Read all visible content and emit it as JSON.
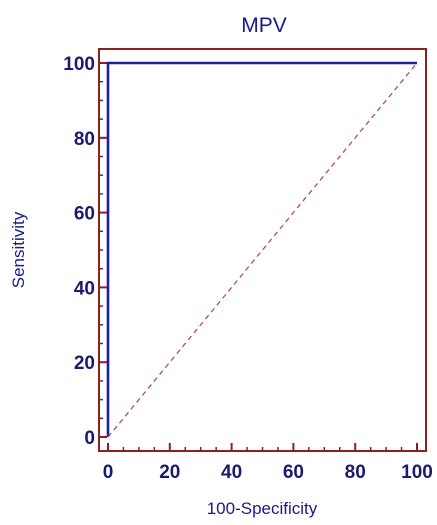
{
  "chart_data": {
    "type": "line",
    "title": "MPV",
    "xlabel": "100-Specificity",
    "ylabel": "Sensitivity",
    "xlim": [
      0,
      100
    ],
    "ylim": [
      0,
      100
    ],
    "xticks": [
      0,
      20,
      40,
      60,
      80,
      100
    ],
    "yticks": [
      0,
      20,
      40,
      60,
      80,
      100
    ],
    "x_tick_labels": [
      "0",
      "20",
      "40",
      "60",
      "80",
      "100"
    ],
    "y_tick_labels": [
      "0",
      "20",
      "40",
      "60",
      "80",
      "100"
    ],
    "grid": false,
    "series": [
      {
        "x": [
          0,
          0,
          100
        ],
        "y": [
          0,
          100,
          100
        ],
        "style": "solid",
        "color": "#1e1ea0"
      },
      {
        "x": [
          0,
          100
        ],
        "y": [
          0,
          100
        ],
        "style": "dashed",
        "color": "#b05050"
      }
    ],
    "colors": {
      "frame": "#8b2020",
      "text": "#1a1a8c"
    }
  }
}
